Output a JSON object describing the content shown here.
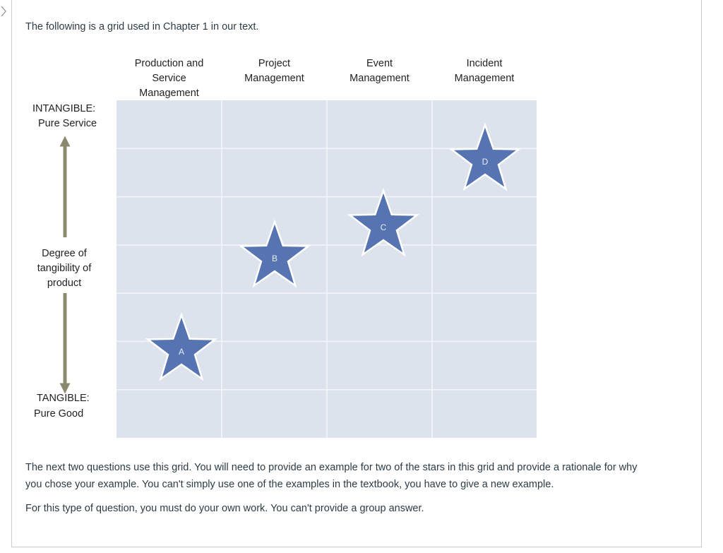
{
  "intro": "The following is a grid used in Chapter 1 in our text.",
  "columns": [
    [
      "Production and",
      "Service",
      "Management"
    ],
    [
      "Project",
      "Management"
    ],
    [
      "Event",
      "Management"
    ],
    [
      "Incident",
      "Management"
    ]
  ],
  "axis": {
    "top": [
      "INTANGIBLE:",
      "Pure Service"
    ],
    "middle": [
      "Degree of",
      "tangibility of",
      "product"
    ],
    "bottom": [
      "TANGIBLE:",
      "Pure Good"
    ]
  },
  "stars": [
    "A",
    "B",
    "C",
    "D"
  ],
  "paragraphs": [
    "The next two questions use this grid. You will need to provide an example for two of the stars in this grid and provide a rationale for why",
    "you chose your example. You can't simply use one of the examples in the textbook, you have to give a new example.",
    "For this type of question, you must do your own work. You can't provide a group answer."
  ]
}
